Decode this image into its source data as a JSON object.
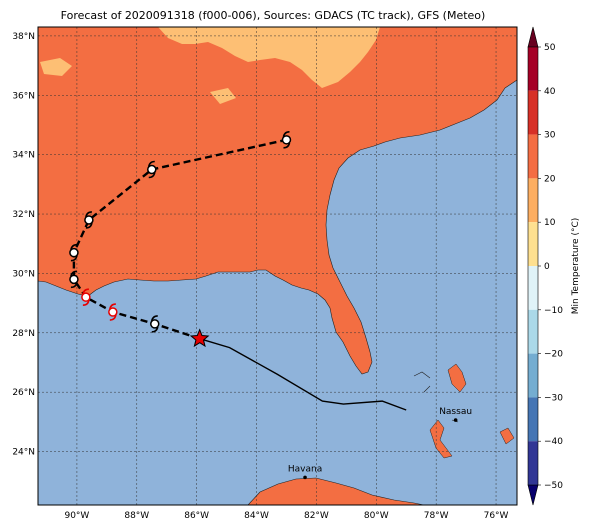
{
  "title": "Forecast of 2020091318 (f000-006), Sources: GDACS (TC track), GFS (Meteo)",
  "map": {
    "lon_range": [
      -91.3,
      -75.3
    ],
    "lat_range": [
      22.2,
      38.3
    ],
    "lon_ticks": [
      {
        "value": -90,
        "label": "90°W"
      },
      {
        "value": -88,
        "label": "88°W"
      },
      {
        "value": -86,
        "label": "86°W"
      },
      {
        "value": -84,
        "label": "84°W"
      },
      {
        "value": -82,
        "label": "82°W"
      },
      {
        "value": -80,
        "label": "80°W"
      },
      {
        "value": -78,
        "label": "78°W"
      },
      {
        "value": -76,
        "label": "76°W"
      }
    ],
    "lat_ticks": [
      {
        "value": 24,
        "label": "24°N"
      },
      {
        "value": 26,
        "label": "26°N"
      },
      {
        "value": 28,
        "label": "28°N"
      },
      {
        "value": 30,
        "label": "30°N"
      },
      {
        "value": 32,
        "label": "32°N"
      },
      {
        "value": 34,
        "label": "34°N"
      },
      {
        "value": 36,
        "label": "36°N"
      },
      {
        "value": 38,
        "label": "38°N"
      }
    ],
    "gridlines": true,
    "colors": {
      "water": "#8fb3da",
      "land_warm": "#f36e42",
      "land_cool": "#fdbf74",
      "track_forecast": "#000000",
      "track_past": "#000000",
      "current_marker": "#e60000",
      "past_symbols": "#e60000"
    }
  },
  "cities": [
    {
      "name": "Nassau",
      "lon": -77.35,
      "lat": 25.06
    },
    {
      "name": "Havana",
      "lon": -82.38,
      "lat": 23.13
    }
  ],
  "track": {
    "current": {
      "lon": -85.9,
      "lat": 27.8
    },
    "forecast": [
      {
        "lon": -85.9,
        "lat": 27.8
      },
      {
        "lon": -87.4,
        "lat": 28.3
      },
      {
        "lon": -88.8,
        "lat": 28.7
      },
      {
        "lon": -89.7,
        "lat": 29.2
      },
      {
        "lon": -90.1,
        "lat": 29.8
      },
      {
        "lon": -90.1,
        "lat": 30.7
      },
      {
        "lon": -89.6,
        "lat": 31.8
      },
      {
        "lon": -87.5,
        "lat": 33.5
      },
      {
        "lon": -83.0,
        "lat": 34.5
      }
    ],
    "forecast_symbols": [
      {
        "lon": -87.4,
        "lat": 28.3
      },
      {
        "lon": -90.1,
        "lat": 29.8
      },
      {
        "lon": -90.1,
        "lat": 30.7
      },
      {
        "lon": -89.6,
        "lat": 31.8
      },
      {
        "lon": -87.5,
        "lat": 33.5
      },
      {
        "lon": -83.0,
        "lat": 34.5
      }
    ],
    "red_symbols": [
      {
        "lon": -88.8,
        "lat": 28.7
      },
      {
        "lon": -89.7,
        "lat": 29.2
      }
    ],
    "past": [
      {
        "lon": -85.9,
        "lat": 27.8
      },
      {
        "lon": -84.9,
        "lat": 27.5
      },
      {
        "lon": -83.3,
        "lat": 26.6
      },
      {
        "lon": -81.8,
        "lat": 25.7
      },
      {
        "lon": -81.1,
        "lat": 25.6
      },
      {
        "lon": -79.8,
        "lat": 25.7
      },
      {
        "lon": -79.0,
        "lat": 25.4
      }
    ]
  },
  "colorbar": {
    "label": "Min Temperature (°C)",
    "min": -50,
    "max": 50,
    "ticks": [
      {
        "value": 50,
        "label": "50"
      },
      {
        "value": 40,
        "label": "40"
      },
      {
        "value": 30,
        "label": "30"
      },
      {
        "value": 20,
        "label": "20"
      },
      {
        "value": 10,
        "label": "10"
      },
      {
        "value": 0,
        "label": "0"
      },
      {
        "value": -10,
        "label": "−10"
      },
      {
        "value": -20,
        "label": "−20"
      },
      {
        "value": -30,
        "label": "−30"
      },
      {
        "value": -40,
        "label": "−40"
      },
      {
        "value": -50,
        "label": "−50"
      }
    ],
    "bands": [
      {
        "from": 40,
        "to": 50,
        "color": "#a50026"
      },
      {
        "from": 30,
        "to": 40,
        "color": "#d73027"
      },
      {
        "from": 20,
        "to": 30,
        "color": "#f46d43"
      },
      {
        "from": 10,
        "to": 20,
        "color": "#fdae61"
      },
      {
        "from": 0,
        "to": 10,
        "color": "#fee090"
      },
      {
        "from": -10,
        "to": 0,
        "color": "#e0f3f8"
      },
      {
        "from": -20,
        "to": -10,
        "color": "#abd9e9"
      },
      {
        "from": -30,
        "to": -20,
        "color": "#74add1"
      },
      {
        "from": -40,
        "to": -30,
        "color": "#4575b4"
      },
      {
        "from": -50,
        "to": -40,
        "color": "#313695"
      }
    ],
    "extend_top_color": "#67001f",
    "extend_bottom_color": "#08006d"
  }
}
